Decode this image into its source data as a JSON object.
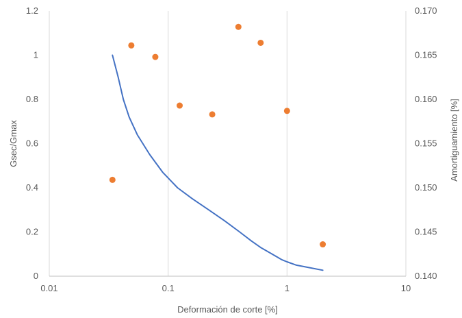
{
  "chart_data": {
    "type": "line+scatter",
    "xlabel": "Deformación de corte [%]",
    "ylabel_left": "Gsec/Gmax",
    "ylabel_right": "Amortiguamiento [%]",
    "x_scale": "log",
    "xlim": [
      0.01,
      10
    ],
    "ylim_left": [
      0,
      1.2
    ],
    "ylim_right": [
      0.14,
      0.17
    ],
    "x_ticks": [
      "0.01",
      "0.1",
      "1",
      "10"
    ],
    "y_ticks_left": [
      "0",
      "0.2",
      "0.4",
      "0.6",
      "0.8",
      "1",
      "1.2"
    ],
    "y_ticks_right": [
      "0.140",
      "0.145",
      "0.150",
      "0.155",
      "0.160",
      "0.165",
      "0.170"
    ],
    "grid": "vertical",
    "colors": {
      "line": "#4472C4",
      "scatter": "#ED7D31",
      "grid": "#D9D9D9",
      "axis": "#BFBFBF"
    },
    "series": [
      {
        "type": "line",
        "axis": "left",
        "x": [
          0.034,
          0.038,
          0.042,
          0.047,
          0.055,
          0.07,
          0.09,
          0.12,
          0.16,
          0.22,
          0.3,
          0.4,
          0.5,
          0.6,
          0.75,
          0.9,
          1.0,
          1.2,
          1.5,
          2.0
        ],
        "y": [
          1.0,
          0.9,
          0.8,
          0.72,
          0.64,
          0.55,
          0.47,
          0.4,
          0.35,
          0.3,
          0.25,
          0.2,
          0.16,
          0.13,
          0.1,
          0.075,
          0.065,
          0.05,
          0.04,
          0.027
        ]
      },
      {
        "type": "scatter",
        "axis": "right",
        "x": [
          0.034,
          0.049,
          0.078,
          0.125,
          0.235,
          0.39,
          0.6,
          1.0,
          2.0
        ],
        "y": [
          0.1509,
          0.1661,
          0.1648,
          0.1593,
          0.1583,
          0.1682,
          0.1664,
          0.1587,
          0.1436
        ]
      }
    ]
  }
}
